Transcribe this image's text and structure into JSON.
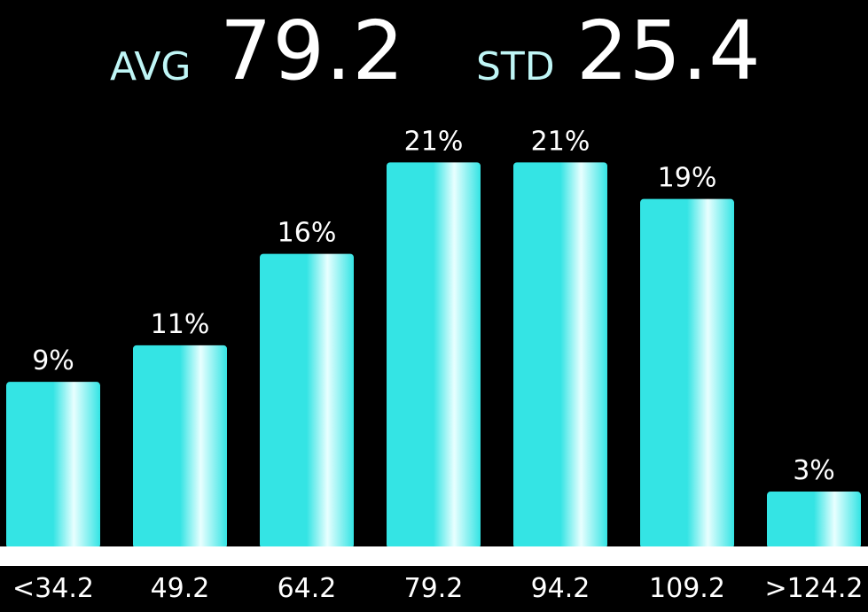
{
  "stats": {
    "avg_label": "AVG",
    "avg_value": "79.2",
    "std_label": "STD",
    "std_value": "25.4"
  },
  "colors": {
    "bar": "#34e4e4",
    "bar_highlight": "#e8ffff",
    "baseline": "#ffffff",
    "background": "#000000"
  },
  "chart_data": {
    "type": "bar",
    "title": "",
    "xlabel": "",
    "ylabel": "",
    "categories": [
      "<34.2",
      "49.2",
      "64.2",
      "79.2",
      "94.2",
      "109.2",
      ">124.2"
    ],
    "values": [
      9,
      11,
      16,
      21,
      21,
      19,
      3
    ],
    "value_labels": [
      "9%",
      "11%",
      "16%",
      "21%",
      "21%",
      "19%",
      "3%"
    ],
    "unit": "%",
    "grid": false,
    "legend": "none"
  }
}
